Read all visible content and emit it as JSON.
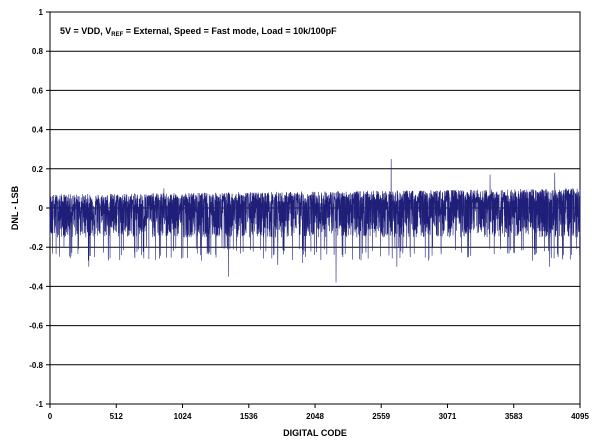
{
  "chart_data": {
    "type": "line",
    "title_parts": {
      "prefix": "5V = VDD, V",
      "subscript": "REF",
      "suffix": " = External, Speed = Fast mode, Load = 10k/100pF"
    },
    "xlabel": "DIGITAL CODE",
    "ylabel": "DNL - LSB",
    "xlim": [
      0,
      4095
    ],
    "ylim": [
      -1,
      1
    ],
    "x_ticks": [
      0,
      512,
      1024,
      1536,
      2048,
      2559,
      3071,
      3583,
      4095
    ],
    "y_ticks": [
      "1",
      "0.8",
      "0.6",
      "0.4",
      "0.2",
      "0",
      "-0.2",
      "-0.4",
      "-0.6",
      "-0.8",
      "-1"
    ],
    "y_tick_values": [
      1,
      0.8,
      0.6,
      0.4,
      0.2,
      0,
      -0.2,
      -0.4,
      -0.6,
      -0.8,
      -1
    ],
    "grid": "horizontal",
    "series": [
      {
        "color": "#1f1f7a",
        "envelope_description_free": true,
        "typical_band": [
          -0.2,
          0.07
        ],
        "peaks": [
          {
            "x": 2636,
            "y": 0.25
          },
          {
            "x": 3400,
            "y": 0.17
          },
          {
            "x": 3900,
            "y": 0.18
          },
          {
            "x": 880,
            "y": 0.1
          },
          {
            "x": 1380,
            "y": -0.35
          },
          {
            "x": 2210,
            "y": -0.38
          },
          {
            "x": 1950,
            "y": -0.28
          },
          {
            "x": 1760,
            "y": -0.29
          },
          {
            "x": 3860,
            "y": -0.3
          },
          {
            "x": 300,
            "y": -0.3
          },
          {
            "x": 2680,
            "y": -0.3
          }
        ]
      }
    ]
  }
}
